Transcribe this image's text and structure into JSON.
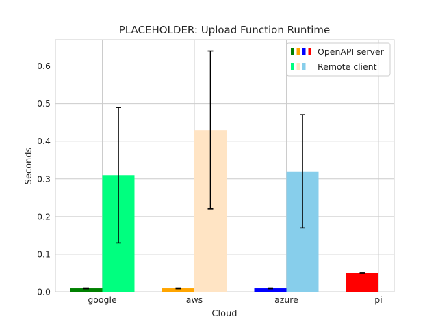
{
  "chart_data": {
    "type": "bar",
    "title": "PLACEHOLDER: Upload Function Runtime",
    "xlabel": "Cloud",
    "ylabel": "Seconds",
    "ylim": [
      0,
      0.67
    ],
    "yticks": [
      "0.0",
      "0.1",
      "0.2",
      "0.3",
      "0.4",
      "0.5",
      "0.6"
    ],
    "yticks_values": [
      0,
      0.1,
      0.2,
      0.3,
      0.4,
      0.5,
      0.6
    ],
    "categories": [
      "google",
      "aws",
      "azure",
      "pi"
    ],
    "grid": true,
    "legend_position": "top-right",
    "series": [
      {
        "name": "OpenAPI server",
        "values": [
          0.009,
          0.009,
          0.009,
          0.05
        ],
        "errors": [
          0.001,
          0.001,
          0.001,
          0.001
        ],
        "colors": [
          "#008000",
          "#ffa500",
          "#0000ff",
          "#ff0000"
        ]
      },
      {
        "name": "Remote client",
        "values": [
          0.31,
          0.43,
          0.32,
          null
        ],
        "errors": [
          0.18,
          0.21,
          0.15,
          null
        ],
        "colors": [
          "#00ff7f",
          "#ffe4c4",
          "#87ceeb",
          null
        ]
      }
    ]
  }
}
